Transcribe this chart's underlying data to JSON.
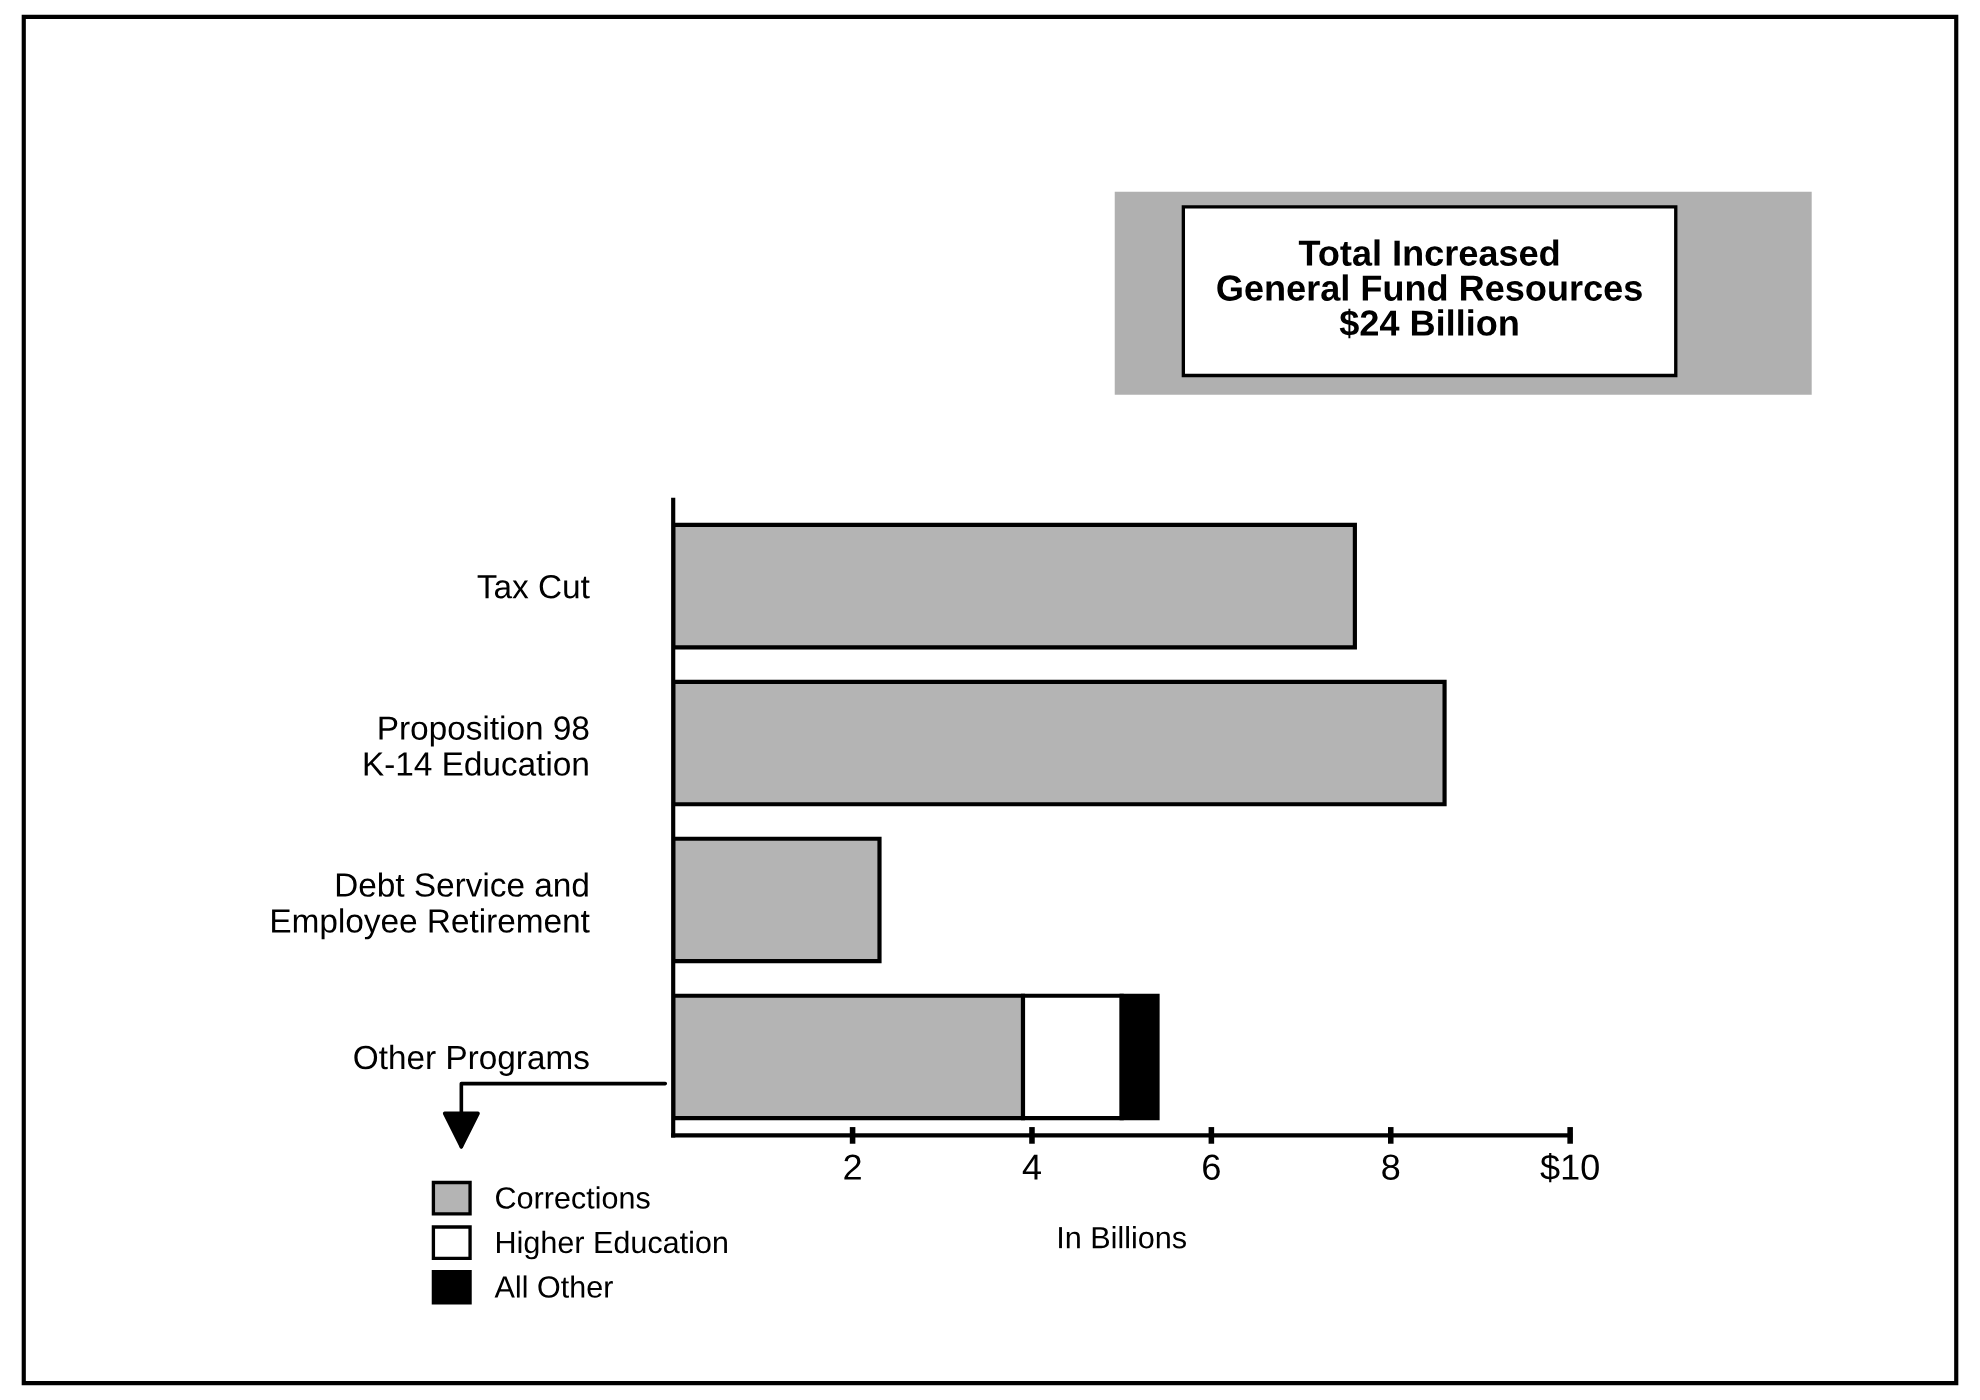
{
  "chart_data": {
    "type": "bar",
    "orientation": "horizontal",
    "stacked": true,
    "title": "Total Increased\nGeneral Fund Resources\n$24 Billion",
    "xlabel": "In Billions",
    "categories": [
      "Tax Cut",
      "Proposition 98\nK-14 Education",
      "Debt Service and\nEmployee Retirement",
      "Other Programs"
    ],
    "series": [
      {
        "name": "Corrections",
        "color": "#b4b4b4",
        "values": [
          7.6,
          8.6,
          2.3,
          3.9
        ]
      },
      {
        "name": "Higher Education",
        "color": "#ffffff",
        "values": [
          null,
          null,
          null,
          1.1
        ]
      },
      {
        "name": "All Other",
        "color": "#000000",
        "values": [
          null,
          null,
          null,
          0.4
        ]
      }
    ],
    "xlim": [
      0,
      10
    ],
    "xticks": [
      2,
      4,
      6,
      8,
      {
        "value": 10,
        "label": "$10"
      }
    ],
    "grid": false,
    "legend": "bottom left"
  }
}
